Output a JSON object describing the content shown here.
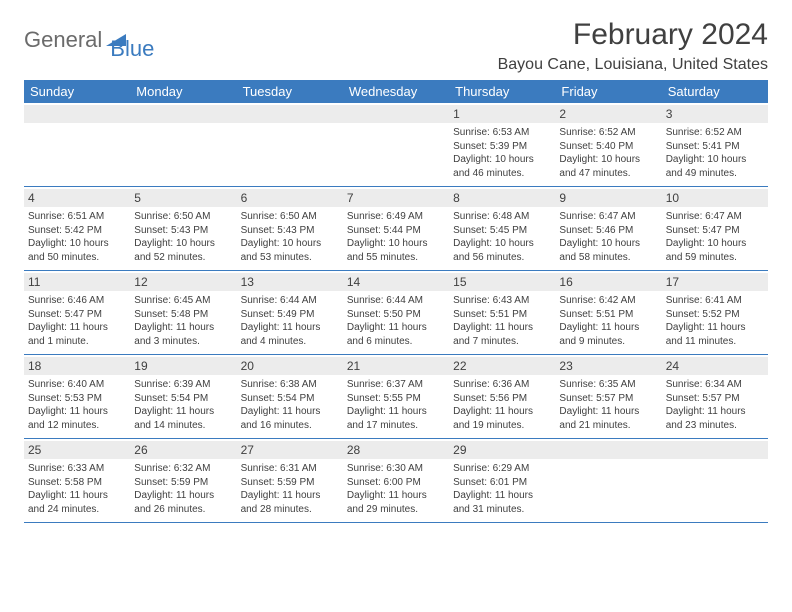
{
  "logo": {
    "text1": "General",
    "text2": "Blue"
  },
  "title": "February 2024",
  "location": "Bayou Cane, Louisiana, United States",
  "colors": {
    "header_bg": "#3b7bbf",
    "header_text": "#ffffff",
    "daynum_bg": "#ececec",
    "text": "#404040",
    "logo_gray": "#6b6b6b",
    "logo_blue": "#3b7bbf"
  },
  "day_names": [
    "Sunday",
    "Monday",
    "Tuesday",
    "Wednesday",
    "Thursday",
    "Friday",
    "Saturday"
  ],
  "weeks": [
    [
      {
        "n": "",
        "sr": "",
        "ss": "",
        "dl": ""
      },
      {
        "n": "",
        "sr": "",
        "ss": "",
        "dl": ""
      },
      {
        "n": "",
        "sr": "",
        "ss": "",
        "dl": ""
      },
      {
        "n": "",
        "sr": "",
        "ss": "",
        "dl": ""
      },
      {
        "n": "1",
        "sr": "Sunrise: 6:53 AM",
        "ss": "Sunset: 5:39 PM",
        "dl": "Daylight: 10 hours and 46 minutes."
      },
      {
        "n": "2",
        "sr": "Sunrise: 6:52 AM",
        "ss": "Sunset: 5:40 PM",
        "dl": "Daylight: 10 hours and 47 minutes."
      },
      {
        "n": "3",
        "sr": "Sunrise: 6:52 AM",
        "ss": "Sunset: 5:41 PM",
        "dl": "Daylight: 10 hours and 49 minutes."
      }
    ],
    [
      {
        "n": "4",
        "sr": "Sunrise: 6:51 AM",
        "ss": "Sunset: 5:42 PM",
        "dl": "Daylight: 10 hours and 50 minutes."
      },
      {
        "n": "5",
        "sr": "Sunrise: 6:50 AM",
        "ss": "Sunset: 5:43 PM",
        "dl": "Daylight: 10 hours and 52 minutes."
      },
      {
        "n": "6",
        "sr": "Sunrise: 6:50 AM",
        "ss": "Sunset: 5:43 PM",
        "dl": "Daylight: 10 hours and 53 minutes."
      },
      {
        "n": "7",
        "sr": "Sunrise: 6:49 AM",
        "ss": "Sunset: 5:44 PM",
        "dl": "Daylight: 10 hours and 55 minutes."
      },
      {
        "n": "8",
        "sr": "Sunrise: 6:48 AM",
        "ss": "Sunset: 5:45 PM",
        "dl": "Daylight: 10 hours and 56 minutes."
      },
      {
        "n": "9",
        "sr": "Sunrise: 6:47 AM",
        "ss": "Sunset: 5:46 PM",
        "dl": "Daylight: 10 hours and 58 minutes."
      },
      {
        "n": "10",
        "sr": "Sunrise: 6:47 AM",
        "ss": "Sunset: 5:47 PM",
        "dl": "Daylight: 10 hours and 59 minutes."
      }
    ],
    [
      {
        "n": "11",
        "sr": "Sunrise: 6:46 AM",
        "ss": "Sunset: 5:47 PM",
        "dl": "Daylight: 11 hours and 1 minute."
      },
      {
        "n": "12",
        "sr": "Sunrise: 6:45 AM",
        "ss": "Sunset: 5:48 PM",
        "dl": "Daylight: 11 hours and 3 minutes."
      },
      {
        "n": "13",
        "sr": "Sunrise: 6:44 AM",
        "ss": "Sunset: 5:49 PM",
        "dl": "Daylight: 11 hours and 4 minutes."
      },
      {
        "n": "14",
        "sr": "Sunrise: 6:44 AM",
        "ss": "Sunset: 5:50 PM",
        "dl": "Daylight: 11 hours and 6 minutes."
      },
      {
        "n": "15",
        "sr": "Sunrise: 6:43 AM",
        "ss": "Sunset: 5:51 PM",
        "dl": "Daylight: 11 hours and 7 minutes."
      },
      {
        "n": "16",
        "sr": "Sunrise: 6:42 AM",
        "ss": "Sunset: 5:51 PM",
        "dl": "Daylight: 11 hours and 9 minutes."
      },
      {
        "n": "17",
        "sr": "Sunrise: 6:41 AM",
        "ss": "Sunset: 5:52 PM",
        "dl": "Daylight: 11 hours and 11 minutes."
      }
    ],
    [
      {
        "n": "18",
        "sr": "Sunrise: 6:40 AM",
        "ss": "Sunset: 5:53 PM",
        "dl": "Daylight: 11 hours and 12 minutes."
      },
      {
        "n": "19",
        "sr": "Sunrise: 6:39 AM",
        "ss": "Sunset: 5:54 PM",
        "dl": "Daylight: 11 hours and 14 minutes."
      },
      {
        "n": "20",
        "sr": "Sunrise: 6:38 AM",
        "ss": "Sunset: 5:54 PM",
        "dl": "Daylight: 11 hours and 16 minutes."
      },
      {
        "n": "21",
        "sr": "Sunrise: 6:37 AM",
        "ss": "Sunset: 5:55 PM",
        "dl": "Daylight: 11 hours and 17 minutes."
      },
      {
        "n": "22",
        "sr": "Sunrise: 6:36 AM",
        "ss": "Sunset: 5:56 PM",
        "dl": "Daylight: 11 hours and 19 minutes."
      },
      {
        "n": "23",
        "sr": "Sunrise: 6:35 AM",
        "ss": "Sunset: 5:57 PM",
        "dl": "Daylight: 11 hours and 21 minutes."
      },
      {
        "n": "24",
        "sr": "Sunrise: 6:34 AM",
        "ss": "Sunset: 5:57 PM",
        "dl": "Daylight: 11 hours and 23 minutes."
      }
    ],
    [
      {
        "n": "25",
        "sr": "Sunrise: 6:33 AM",
        "ss": "Sunset: 5:58 PM",
        "dl": "Daylight: 11 hours and 24 minutes."
      },
      {
        "n": "26",
        "sr": "Sunrise: 6:32 AM",
        "ss": "Sunset: 5:59 PM",
        "dl": "Daylight: 11 hours and 26 minutes."
      },
      {
        "n": "27",
        "sr": "Sunrise: 6:31 AM",
        "ss": "Sunset: 5:59 PM",
        "dl": "Daylight: 11 hours and 28 minutes."
      },
      {
        "n": "28",
        "sr": "Sunrise: 6:30 AM",
        "ss": "Sunset: 6:00 PM",
        "dl": "Daylight: 11 hours and 29 minutes."
      },
      {
        "n": "29",
        "sr": "Sunrise: 6:29 AM",
        "ss": "Sunset: 6:01 PM",
        "dl": "Daylight: 11 hours and 31 minutes."
      },
      {
        "n": "",
        "sr": "",
        "ss": "",
        "dl": ""
      },
      {
        "n": "",
        "sr": "",
        "ss": "",
        "dl": ""
      }
    ]
  ]
}
